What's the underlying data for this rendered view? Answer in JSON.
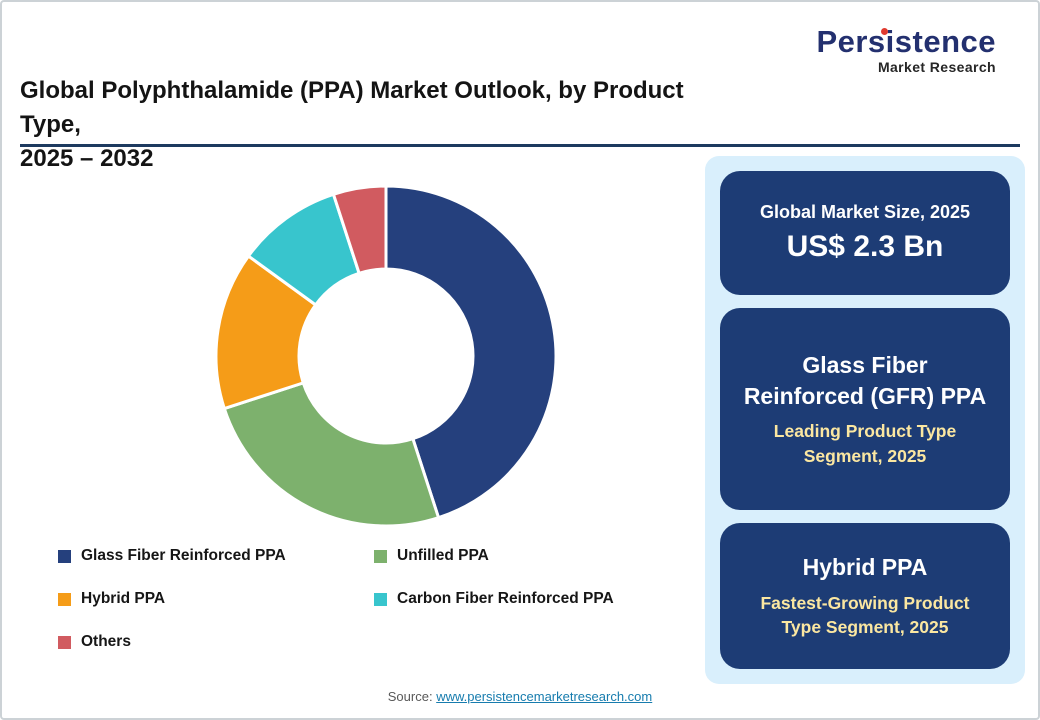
{
  "header": {
    "title_line1": "Global Polyphthalamide (PPA) Market Outlook, by Product Type,",
    "title_line2": "2025 – 2032"
  },
  "logo": {
    "name": "Persistence",
    "tagline": "Market Research",
    "brand_navy": "#23306f",
    "accent_red": "#e03a2f"
  },
  "chart_data": {
    "type": "pie",
    "subtype": "donut",
    "title": "Global Polyphthalamide (PPA) Market Outlook, by Product Type, 2025 – 2032",
    "categories": [
      "Glass Fiber Reinforced PPA",
      "Unfilled PPA",
      "Hybrid PPA",
      "Carbon Fiber Reinforced PPA",
      "Others"
    ],
    "values": [
      45,
      25,
      15,
      10,
      5
    ],
    "colors": [
      "#25407d",
      "#7db16d",
      "#f59c18",
      "#38c5cd",
      "#d15b60"
    ],
    "donut_hole_ratio": 0.51,
    "start_angle_deg": 0,
    "direction": "clockwise",
    "legend_position": "bottom-left",
    "note": "No numeric data labels shown; segment shares estimated from arc angles"
  },
  "sidebar": {
    "background": "#d9effc",
    "box_color": "#1d3c75",
    "highlight_text_color": "#fbe7a1",
    "boxes": [
      {
        "title": "Global Market Size, 2025",
        "value": "US$ 2.3 Bn"
      },
      {
        "title": "Glass Fiber Reinforced (GFR) PPA",
        "subtitle": "Leading Product Type Segment, 2025"
      },
      {
        "title": "Hybrid PPA",
        "subtitle": "Fastest-Growing Product Type Segment, 2025"
      }
    ]
  },
  "footer": {
    "source_label": "Source:",
    "source_link": "www.persistencemarketresearch.com"
  }
}
